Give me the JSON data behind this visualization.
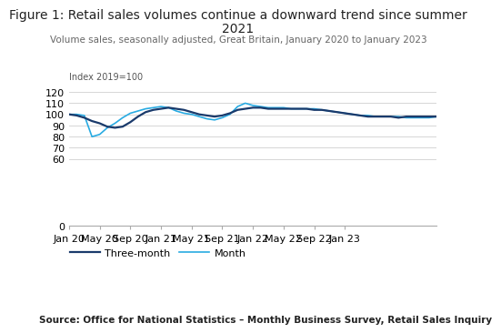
{
  "title_line1": "Figure 1: Retail sales volumes continue a downward trend since summer",
  "title_line2": "2021",
  "subtitle": "Volume sales, seasonally adjusted, Great Britain, January 2020 to January 2023",
  "ylabel": "Index 2019=100",
  "source": "Source: Office for National Statistics – Monthly Business Survey, Retail Sales Inquiry",
  "yticks": [
    0,
    60,
    70,
    80,
    90,
    100,
    110,
    120
  ],
  "ylim": [
    0,
    125
  ],
  "xtick_labels": [
    "Jan 20",
    "May 20",
    "Sep 20",
    "Jan 21",
    "May 21",
    "Sep 21",
    "Jan 22",
    "May 22",
    "Sep 22",
    "Jan 23"
  ],
  "xtick_pos": [
    0,
    4,
    8,
    12,
    16,
    20,
    24,
    28,
    32,
    36
  ],
  "color_three_month": "#1a3a6b",
  "color_month": "#29abe2",
  "three_month": [
    100,
    99,
    97,
    94,
    92,
    89,
    88,
    89,
    93,
    98,
    102,
    104,
    105,
    106,
    105,
    104,
    102,
    100,
    99,
    98,
    99,
    101,
    104,
    105,
    106,
    106,
    105,
    105,
    105,
    105,
    105,
    105,
    104,
    104,
    103,
    102,
    101,
    100,
    99,
    98,
    98,
    98,
    98,
    97,
    98,
    98,
    98,
    98,
    98
  ],
  "month": [
    100,
    100,
    99,
    80,
    82,
    88,
    92,
    97,
    101,
    103,
    105,
    106,
    107,
    106,
    103,
    101,
    100,
    98,
    96,
    95,
    97,
    100,
    107,
    110,
    108,
    107,
    106,
    106,
    106,
    105,
    105,
    105,
    105,
    104,
    103,
    102,
    101,
    100,
    99,
    99,
    98,
    98,
    98,
    98,
    97,
    97,
    97,
    97,
    98
  ],
  "bg_color": "#ffffff",
  "grid_color": "#d0d0d0",
  "spine_color": "#aaaaaa",
  "title_fontsize": 10,
  "subtitle_fontsize": 7.5,
  "tick_fontsize": 8,
  "legend_fontsize": 8,
  "source_fontsize": 7.5
}
